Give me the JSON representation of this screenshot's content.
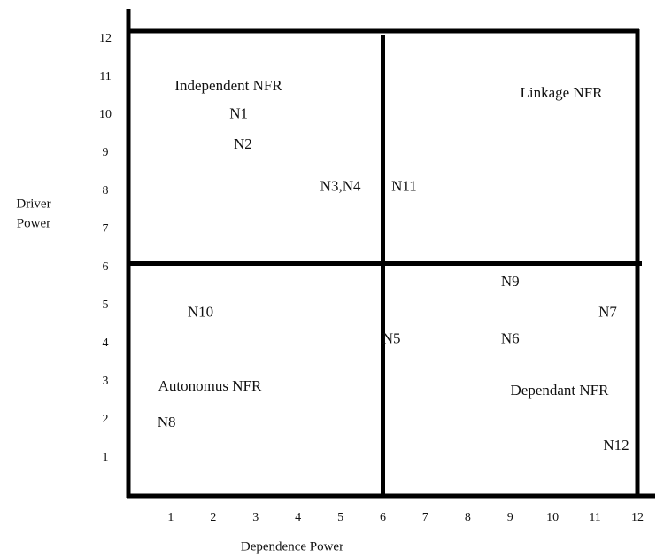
{
  "chart_data": {
    "type": "scatter",
    "x_label": "Dependence Power",
    "y_label": [
      "Driver",
      "Power"
    ],
    "xlim": [
      0,
      12
    ],
    "ylim": [
      0,
      12.2
    ],
    "xticks": [
      1,
      2,
      3,
      4,
      5,
      6,
      7,
      8,
      9,
      10,
      11,
      12
    ],
    "yticks": [
      1,
      2,
      3,
      4,
      5,
      6,
      7,
      8,
      9,
      10,
      11,
      12
    ],
    "points": [
      {
        "label": "N1",
        "x": 2.6,
        "y": 10
      },
      {
        "label": "N2",
        "x": 2.7,
        "y": 9.2
      },
      {
        "label": "N3,N4",
        "x": 5.0,
        "y": 8.1
      },
      {
        "label": "N11",
        "x": 6.5,
        "y": 8.1
      },
      {
        "label": "N10",
        "x": 1.7,
        "y": 4.8
      },
      {
        "label": "N5",
        "x": 6.2,
        "y": 4.1
      },
      {
        "label": "N9",
        "x": 9.0,
        "y": 5.6
      },
      {
        "label": "N6",
        "x": 9.0,
        "y": 4.1
      },
      {
        "label": "N7",
        "x": 11.3,
        "y": 4.8
      },
      {
        "label": "N8",
        "x": 0.9,
        "y": 1.9
      },
      {
        "label": "N12",
        "x": 11.5,
        "y": 1.3
      }
    ],
    "annotations": [
      "Independent NFR",
      "Linkage NFR",
      "Autonomus NFR",
      "Dependant NFR"
    ]
  }
}
